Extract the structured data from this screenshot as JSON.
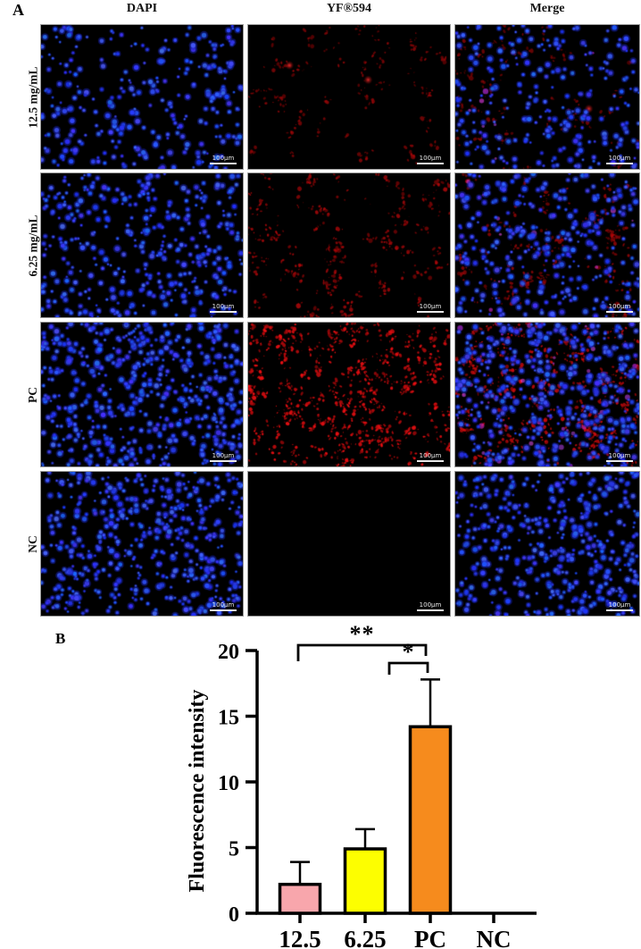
{
  "panel_a": {
    "label": "A",
    "column_headers": [
      "DAPI",
      "YF®594",
      "Merge"
    ],
    "scale_bar_label": "100μm",
    "rows": [
      {
        "label": "12.5 mg/mL",
        "cells": [
          {
            "channel": "DAPI",
            "blue": 300,
            "red": 0,
            "red_brightness": 0,
            "red_blobs": 0,
            "magenta": 0
          },
          {
            "channel": "YF®594",
            "blue": 0,
            "red": 260,
            "red_brightness": 0.5,
            "red_blobs": 2,
            "magenta": 0
          },
          {
            "channel": "Merge",
            "blue": 290,
            "red": 210,
            "red_brightness": 0.45,
            "red_blobs": 1,
            "magenta": 10
          }
        ]
      },
      {
        "label": "6.25 mg/mL",
        "cells": [
          {
            "channel": "DAPI",
            "blue": 380,
            "red": 0,
            "red_brightness": 0,
            "red_blobs": 0,
            "magenta": 0
          },
          {
            "channel": "YF®594",
            "blue": 0,
            "red": 420,
            "red_brightness": 0.62,
            "red_blobs": 0,
            "magenta": 0
          },
          {
            "channel": "Merge",
            "blue": 370,
            "red": 340,
            "red_brightness": 0.55,
            "red_blobs": 0,
            "magenta": 15
          }
        ]
      },
      {
        "label": "PC",
        "cells": [
          {
            "channel": "DAPI",
            "blue": 560,
            "red": 0,
            "red_brightness": 0,
            "red_blobs": 0,
            "magenta": 0
          },
          {
            "channel": "YF®594",
            "blue": 0,
            "red": 1000,
            "red_brightness": 0.92,
            "red_blobs": 0,
            "magenta": 0
          },
          {
            "channel": "Merge",
            "blue": 540,
            "red": 750,
            "red_brightness": 0.8,
            "red_blobs": 0,
            "magenta": 50
          }
        ]
      },
      {
        "label": "NC",
        "cells": [
          {
            "channel": "DAPI",
            "blue": 500,
            "red": 0,
            "red_brightness": 0,
            "red_blobs": 0,
            "magenta": 0
          },
          {
            "channel": "YF®594",
            "blue": 0,
            "red": 0,
            "red_brightness": 0,
            "red_blobs": 0,
            "magenta": 0
          },
          {
            "channel": "Merge",
            "blue": 500,
            "red": 0,
            "red_brightness": 0,
            "red_blobs": 0,
            "magenta": 0
          }
        ]
      }
    ]
  },
  "panel_b": {
    "label": "B"
  },
  "chart_data": {
    "type": "bar",
    "categories": [
      "12.5",
      "6.25",
      "PC",
      "NC"
    ],
    "values": [
      2.2,
      4.9,
      14.2,
      0
    ],
    "errors_plus": [
      1.7,
      1.5,
      3.6,
      0
    ],
    "bar_colors": [
      "#F8A6AC",
      "#FDFE00",
      "#F68B1D",
      null
    ],
    "title": "",
    "xlabel": "",
    "ylabel": "Fluorescence intensity",
    "ylim": [
      0,
      20
    ],
    "yticks": [
      0,
      5,
      10,
      15,
      20
    ],
    "grid": false,
    "legend": "none",
    "significance": [
      {
        "from": "12.5",
        "to": "PC",
        "label": "**"
      },
      {
        "from": "6.25",
        "to": "PC",
        "label": "*"
      }
    ]
  }
}
